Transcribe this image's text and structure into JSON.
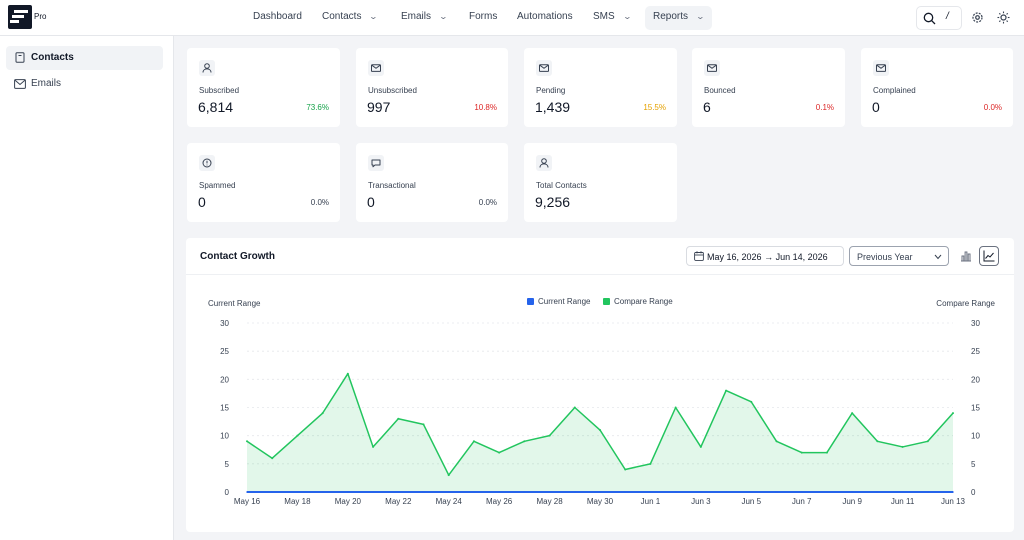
{
  "brand": {
    "badge": "Pro"
  },
  "nav": [
    {
      "label": "Dashboard",
      "dropdown": false,
      "active": false
    },
    {
      "label": "Contacts",
      "dropdown": true,
      "active": false
    },
    {
      "label": "Emails",
      "dropdown": true,
      "active": false
    },
    {
      "label": "Forms",
      "dropdown": false,
      "active": false
    },
    {
      "label": "Automations",
      "dropdown": false,
      "active": false
    },
    {
      "label": "SMS",
      "dropdown": true,
      "active": false
    },
    {
      "label": "Reports",
      "dropdown": true,
      "active": true
    }
  ],
  "tools": {
    "search_icon": "search-icon",
    "shortcut_hint": "/",
    "settings_icon": "gear-icon",
    "theme_icon": "sun-icon"
  },
  "sidebar": {
    "items": [
      {
        "label": "Contacts",
        "icon": "contacts-book-icon",
        "active": true
      },
      {
        "label": "Emails",
        "icon": "envelope-icon",
        "active": false
      }
    ]
  },
  "stats": [
    {
      "label": "Subscribed",
      "value": "6,814",
      "percent": "73.6%",
      "percent_color": "#16a34a",
      "icon": "user-icon"
    },
    {
      "label": "Unsubscribed",
      "value": "997",
      "percent": "10.8%",
      "percent_color": "#dc2626",
      "icon": "mail-icon"
    },
    {
      "label": "Pending",
      "value": "1,439",
      "percent": "15.5%",
      "percent_color": "#e5a100",
      "icon": "mail-icon"
    },
    {
      "label": "Bounced",
      "value": "6",
      "percent": "0.1%",
      "percent_color": "#dc2626",
      "icon": "mail-icon"
    },
    {
      "label": "Complained",
      "value": "0",
      "percent": "0.0%",
      "percent_color": "#dc2626",
      "icon": "mail-icon"
    },
    {
      "label": "Spammed",
      "value": "0",
      "percent": "0.0%",
      "percent_color": "#374151",
      "icon": "alert-circle-icon"
    },
    {
      "label": "Transactional",
      "value": "0",
      "percent": "0.0%",
      "percent_color": "#374151",
      "icon": "message-icon"
    },
    {
      "label": "Total Contacts",
      "value": "9,256",
      "percent": "",
      "percent_color": "#374151",
      "icon": "user-icon"
    }
  ],
  "growth": {
    "title": "Contact Growth",
    "date_start": "May 16, 2026",
    "date_end": "Jun 14, 2026",
    "compare_select": "Previous Year",
    "chart_type_active": "line"
  },
  "chart_data": {
    "type": "area",
    "x": [
      "May 16",
      "May 17",
      "May 18",
      "May 19",
      "May 20",
      "May 21",
      "May 22",
      "May 23",
      "May 24",
      "May 25",
      "May 26",
      "May 27",
      "May 28",
      "May 29",
      "May 30",
      "May 31",
      "Jun 1",
      "Jun 2",
      "Jun 3",
      "Jun 4",
      "Jun 5",
      "Jun 6",
      "Jun 7",
      "Jun 8",
      "Jun 9",
      "Jun 10",
      "Jun 11",
      "Jun 12",
      "Jun 13"
    ],
    "x_tick_labels": [
      "May 16",
      "May 18",
      "May 20",
      "May 22",
      "May 24",
      "May 26",
      "May 28",
      "May 30",
      "Jun 1",
      "Jun 3",
      "Jun 5",
      "Jun 7",
      "Jun 9",
      "Jun 11",
      "Jun 13"
    ],
    "series": [
      {
        "name": "Current Range",
        "color": "#2563eb",
        "values": [
          0,
          0,
          0,
          0,
          0,
          0,
          0,
          0,
          0,
          0,
          0,
          0,
          0,
          0,
          0,
          0,
          0,
          0,
          0,
          0,
          0,
          0,
          0,
          0,
          0,
          0,
          0,
          0,
          0
        ]
      },
      {
        "name": "Compare Range",
        "color": "#22c55e",
        "values": [
          9,
          6,
          10,
          14,
          21,
          8,
          13,
          12,
          3,
          9,
          7,
          9,
          10,
          15,
          11,
          4,
          5,
          15,
          8,
          18,
          16,
          9,
          7,
          7,
          14,
          9,
          8,
          9,
          14
        ]
      }
    ],
    "ylabel_left": "Current Range",
    "ylabel_right": "Compare Range",
    "ylim": [
      0,
      30
    ],
    "y_ticks": [
      0,
      5,
      10,
      15,
      20,
      25,
      30
    ],
    "grid": true,
    "legend_position": "top-center"
  }
}
